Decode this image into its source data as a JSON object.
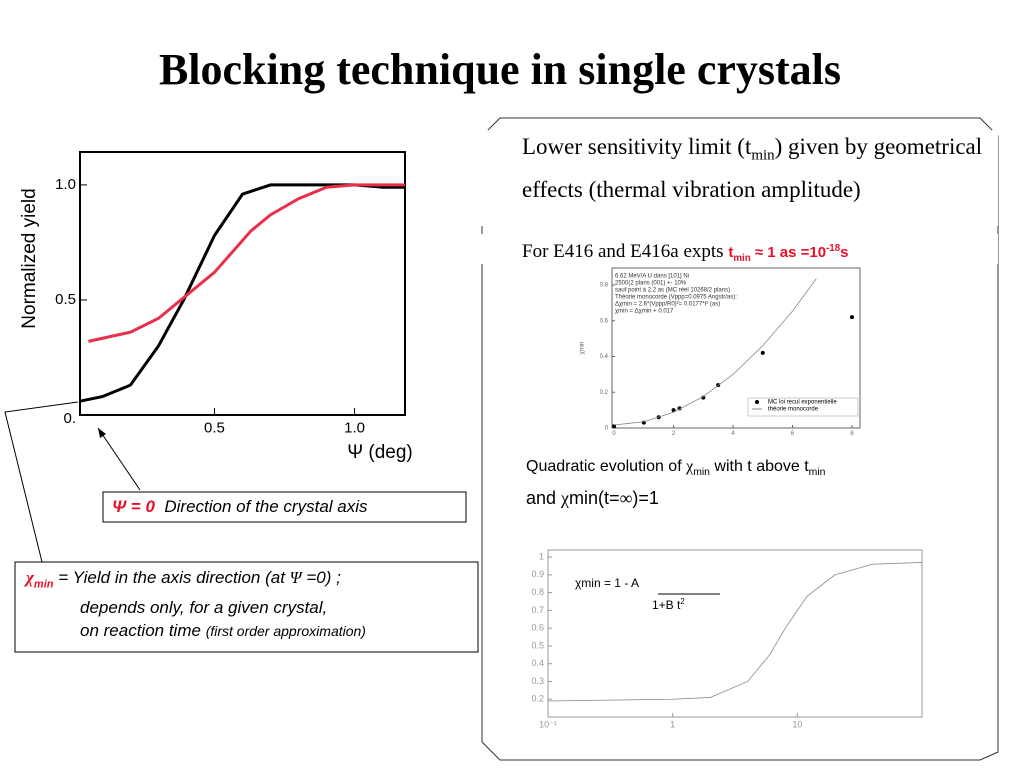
{
  "title": "Blocking technique in single crystals",
  "right": {
    "p1": [
      "Lower sensitivity limit (t",
      "min",
      ") given by geometrical effects (thermal vibration amplitude)"
    ],
    "p2": [
      "For E416 and E416a expts ",
      "t",
      "min",
      " ≈ 1 as =10",
      "-18",
      "s"
    ],
    "quad": [
      "Quadratic evolution of ",
      "χ",
      "min",
      " with t above t",
      "min"
    ],
    "quad2": [
      "and ",
      "χ",
      "min(t=",
      "∞",
      ")=1"
    ],
    "formula": [
      "χmin = 1 - ",
      "A",
      "1+B t",
      "2"
    ]
  },
  "left": {
    "psi": [
      "Ψ = 0",
      "Direction of the crystal axis"
    ],
    "chi": [
      "χ",
      "min",
      " = Yield in the axis direction (at ",
      "Ψ",
      " =0) ;",
      "depends only, for a given crystal,",
      "on reaction time ",
      "(first order approximation)"
    ]
  },
  "chart_data": [
    {
      "type": "line",
      "ylabel": "Normalized yield",
      "xlabel": "Ψ (deg)",
      "xlim": [
        0.02,
        1.18
      ],
      "ylim": [
        0,
        1.143
      ],
      "xticks": [
        0.5,
        {
          "value": 1.0,
          "label": "1.0"
        }
      ],
      "yticks": [
        {
          "value": 0,
          "label": "0."
        },
        0.5,
        {
          "value": 1.0,
          "label": "1.0"
        }
      ],
      "series": [
        {
          "color": "#000000",
          "x": [
            0.02,
            0.1,
            0.2,
            0.3,
            0.39,
            0.5,
            0.6,
            0.7,
            0.8,
            0.9,
            1.0,
            1.1,
            1.18
          ],
          "values": [
            0.06,
            0.08,
            0.13,
            0.3,
            0.5,
            0.78,
            0.96,
            1.0,
            1.0,
            1.0,
            1.0,
            0.99,
            0.99
          ]
        },
        {
          "color": "#e8304a",
          "x": [
            0.05,
            0.2,
            0.3,
            0.36,
            0.5,
            0.63,
            0.7,
            0.8,
            0.9,
            1.0,
            1.18
          ],
          "values": [
            0.32,
            0.36,
            0.42,
            0.48,
            0.62,
            0.8,
            0.87,
            0.94,
            0.99,
            1.0,
            1.0
          ]
        }
      ]
    },
    {
      "type": "scatter",
      "ylabel": "χmin",
      "annotations": [
        "6.62 MeV/A U dans [101] Ni",
        "2500(2 plans (001) +- 10%",
        "sauf point à 2.2 as (MC réel 10268/2 plans)",
        "Théorie monocorde (Vppp=0.0975 Angstr/as):",
        "Δχmin = 2.6*(Vppp/R0)²= 0.0177*t² (as)",
        "χmin = Δχmin + 0.017"
      ],
      "xlim": [
        -0.07,
        8.27
      ],
      "ylim": [
        0,
        0.895
      ],
      "xticks": [
        0,
        2,
        4,
        6,
        8
      ],
      "yticks": [
        0,
        0.2,
        0.4,
        0.6,
        0.8
      ],
      "series": [
        {
          "name": "MC loi recul exponentielle",
          "color": "#000000",
          "x": [
            0,
            1,
            1.5,
            2,
            2.2,
            3,
            3.5,
            5,
            8
          ],
          "values": [
            0.01,
            0.03,
            0.06,
            0.1,
            0.11,
            0.17,
            0.24,
            0.42,
            0.62
          ]
        },
        {
          "name": "théorie monocorde",
          "color": "#888888",
          "style": "line",
          "x": [
            0,
            1,
            2,
            3,
            4,
            5,
            6,
            6.8
          ],
          "values": [
            0.017,
            0.035,
            0.088,
            0.176,
            0.3,
            0.46,
            0.654,
            0.835
          ]
        }
      ]
    },
    {
      "type": "line",
      "xscale": "log",
      "xlim": [
        0.1,
        100
      ],
      "ylim": [
        0.1,
        1.04
      ],
      "xticks": [
        {
          "value": 0.1,
          "label": "10⁻¹"
        },
        1,
        10
      ],
      "yticks": [
        0.2,
        0.3,
        0.4,
        0.5,
        0.6,
        0.7,
        0.8,
        0.9,
        1
      ],
      "series": [
        {
          "color": "#888888",
          "x": [
            0.1,
            1,
            2,
            4,
            6,
            8,
            12,
            20,
            40,
            100
          ],
          "values": [
            0.19,
            0.2,
            0.21,
            0.3,
            0.45,
            0.6,
            0.78,
            0.9,
            0.96,
            0.97
          ]
        }
      ]
    }
  ]
}
